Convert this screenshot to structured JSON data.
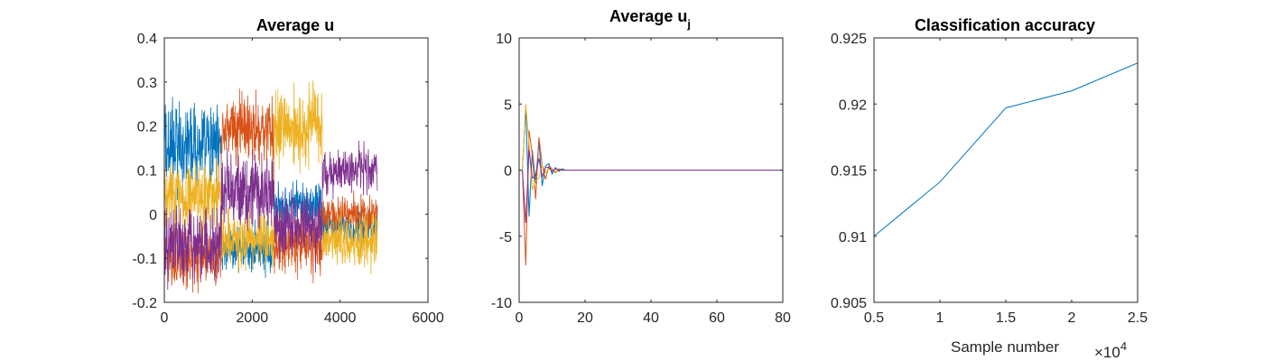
{
  "chart_data": [
    {
      "type": "line",
      "title": "Average u",
      "xlim": [
        0,
        6000
      ],
      "ylim": [
        -0.2,
        0.4
      ],
      "xticks": [
        0,
        2000,
        4000,
        6000
      ],
      "xtick_labels": [
        "0",
        "2000",
        "4000",
        "6000"
      ],
      "yticks": [
        -0.2,
        -0.1,
        0,
        0.1,
        0.2,
        0.3,
        0.4
      ],
      "ytick_labels": [
        "-0.2",
        "-0.1",
        "0",
        "0.1",
        "0.2",
        "0.3",
        "0.4"
      ],
      "xlabel": "",
      "ylabel": "",
      "grid": false,
      "legend": "none",
      "segment_boundaries": [
        0,
        1300,
        2500,
        3600,
        4850
      ],
      "series": [
        {
          "color": "#0072BD",
          "segment_means": [
            0.15,
            -0.08,
            0.02,
            -0.03
          ],
          "segment_noise": [
            0.05,
            0.025,
            0.025,
            0.02
          ]
        },
        {
          "color": "#D95319",
          "segment_means": [
            -0.1,
            0.19,
            -0.07,
            0.0
          ],
          "segment_noise": [
            0.035,
            0.04,
            0.035,
            0.02
          ]
        },
        {
          "color": "#EDB120",
          "segment_means": [
            0.04,
            -0.06,
            0.2,
            -0.06
          ],
          "segment_noise": [
            0.04,
            0.03,
            0.045,
            0.03
          ]
        },
        {
          "color": "#7E2F8E",
          "segment_means": [
            -0.07,
            0.05,
            -0.02,
            0.1
          ],
          "segment_noise": [
            0.04,
            0.04,
            0.04,
            0.025
          ]
        }
      ]
    },
    {
      "type": "line",
      "title": "Average u",
      "title_subscript": "j",
      "xlim": [
        0,
        80
      ],
      "ylim": [
        -10,
        10
      ],
      "xticks": [
        0,
        20,
        40,
        60,
        80
      ],
      "xtick_labels": [
        "0",
        "20",
        "40",
        "60",
        "80"
      ],
      "yticks": [
        -10,
        -5,
        0,
        5,
        10
      ],
      "ytick_labels": [
        "-10",
        "-5",
        "0",
        "5",
        "10"
      ],
      "xlabel": "",
      "ylabel": "",
      "grid": false,
      "legend": "none",
      "series": [
        {
          "color": "#0072BD",
          "x": [
            1,
            2,
            3,
            4,
            5,
            6,
            7,
            8,
            9,
            10,
            11,
            12,
            13,
            14,
            15,
            16,
            18,
            20,
            25,
            80
          ],
          "y": [
            0,
            4.8,
            -3.5,
            1.5,
            -1.0,
            2.3,
            -1.2,
            0.3,
            0.5,
            -0.3,
            0.2,
            -0.1,
            0.1,
            0,
            0,
            0,
            0,
            0,
            0,
            0
          ]
        },
        {
          "color": "#D95319",
          "x": [
            1,
            2,
            3,
            4,
            5,
            6,
            7,
            8,
            9,
            10,
            11,
            12,
            13,
            14,
            15,
            16,
            18,
            20,
            25,
            80
          ],
          "y": [
            0,
            -7.2,
            3.0,
            1.2,
            -2.2,
            2.5,
            0.4,
            -0.7,
            0.3,
            0.1,
            -0.2,
            0.1,
            0,
            0,
            0,
            0,
            0,
            0,
            0,
            0
          ]
        },
        {
          "color": "#EDB120",
          "x": [
            1,
            2,
            3,
            4,
            5,
            6,
            7,
            8,
            9,
            10,
            11,
            12,
            13,
            14,
            15,
            16,
            18,
            20,
            25,
            80
          ],
          "y": [
            0,
            5.0,
            2.0,
            -1.5,
            -0.8,
            -0.6,
            0.4,
            -0.2,
            0.1,
            0,
            -0.1,
            0,
            0,
            0,
            0,
            0,
            0,
            0,
            0,
            0
          ]
        },
        {
          "color": "#7E2F8E",
          "x": [
            1,
            2,
            3,
            4,
            5,
            6,
            7,
            8,
            9,
            10,
            11,
            12,
            13,
            14,
            15,
            16,
            18,
            20,
            25,
            80
          ],
          "y": [
            0,
            -4.0,
            1.5,
            -0.6,
            -0.4,
            0.9,
            -0.5,
            0.2,
            0.2,
            -0.1,
            0.1,
            0,
            0,
            0,
            0,
            0,
            0,
            0,
            0,
            0
          ]
        }
      ]
    },
    {
      "type": "line",
      "title": "Classification accuracy",
      "xlim": [
        5000,
        25000
      ],
      "ylim": [
        0.905,
        0.925
      ],
      "xticks": [
        5000,
        10000,
        15000,
        20000,
        25000
      ],
      "xtick_labels": [
        "0.5",
        "1",
        "1.5",
        "2",
        "2.5"
      ],
      "yticks": [
        0.905,
        0.91,
        0.915,
        0.92,
        0.925
      ],
      "ytick_labels": [
        "0.905",
        "0.91",
        "0.915",
        "0.92",
        "0.925"
      ],
      "xlabel": "Sample number",
      "x_exponent_base": "×10",
      "x_exponent_power": "4",
      "ylabel": "",
      "grid": false,
      "legend": "none",
      "series": [
        {
          "color": "#0072BD",
          "x": [
            5000,
            10000,
            15000,
            20000,
            25000
          ],
          "y": [
            0.91,
            0.9141,
            0.9197,
            0.921,
            0.9231
          ]
        }
      ]
    }
  ]
}
